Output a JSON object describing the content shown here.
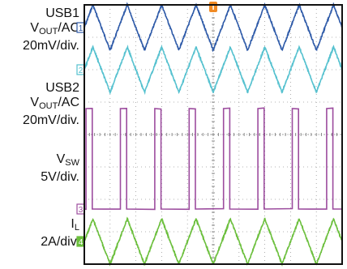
{
  "chart_data": {
    "type": "line",
    "title": "",
    "xlabel": "",
    "ylabel": "",
    "grid": true,
    "divisions": {
      "horizontal": 10,
      "vertical": 8
    },
    "trigger_marker": "T",
    "labels": [
      {
        "lines": [
          "USB1",
          "V_OUT/AC",
          "20mV/div."
        ]
      },
      {
        "lines": [
          "USB2",
          "V_OUT/AC",
          "20mV/div."
        ]
      },
      {
        "lines": [
          "V_SW",
          "5V/div."
        ]
      },
      {
        "lines": [
          "I_L",
          "2A/div."
        ]
      }
    ],
    "series": [
      {
        "marker": "1",
        "color": "#2e5aa8",
        "shape": "triangle",
        "cycles": 7.5,
        "amplitude_div": 0.7,
        "offset_div": 3.3
      },
      {
        "marker": "2",
        "color": "#55c1cf",
        "shape": "triangle",
        "cycles": 7.5,
        "amplitude_div": 0.7,
        "offset_div": 2.0
      },
      {
        "marker": "3",
        "color": "#9c4c9e",
        "shape": "square",
        "cycles": 7.5,
        "low_div": -2.3,
        "high_div": 0.8,
        "duty": 0.18
      },
      {
        "marker": "4",
        "color": "#6bbf3c",
        "shape": "triangle",
        "cycles": 7.5,
        "amplitude_div": 0.7,
        "offset_div": -3.3
      }
    ]
  },
  "text": {
    "usb1_line1": "USB1",
    "usb1_v": "V",
    "usb1_sub": "OUT",
    "usb1_suffix": "/AC",
    "usb1_scale": "20mV/div.",
    "usb2_line1": "USB2",
    "usb2_v": "V",
    "usb2_sub": "OUT",
    "usb2_suffix": "/AC",
    "usb2_scale": "20mV/div.",
    "vsw_v": "V",
    "vsw_sub": "SW",
    "vsw_scale": "5V/div.",
    "il_i": "I",
    "il_sub": "L",
    "il_scale": "2A/div."
  }
}
